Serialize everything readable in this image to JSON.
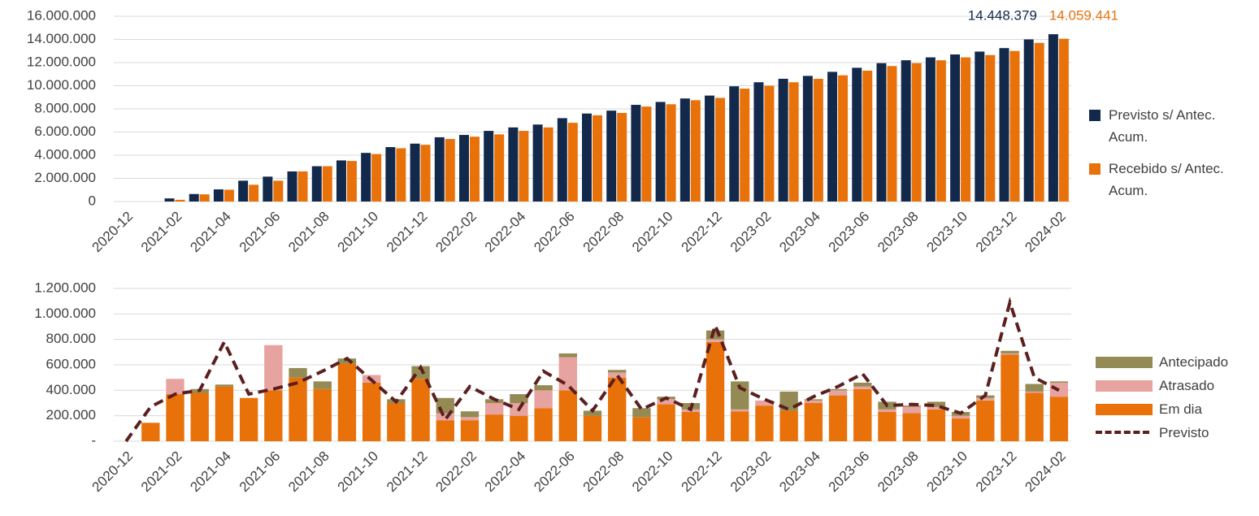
{
  "chart_data": [
    {
      "type": "bar",
      "categories": [
        "2020-12",
        null,
        "2021-02",
        null,
        "2021-04",
        null,
        "2021-06",
        null,
        "2021-08",
        null,
        "2021-10",
        null,
        "2021-12",
        null,
        "2022-02",
        null,
        "2022-04",
        null,
        "2022-06",
        null,
        "2022-08",
        null,
        "2022-10",
        null,
        "2022-12",
        null,
        "2023-02",
        null,
        "2023-04",
        null,
        "2023-06",
        null,
        "2023-08",
        null,
        "2023-10",
        null,
        "2023-12",
        null,
        "2024-02"
      ],
      "series": [
        {
          "name": "Previsto s/ Antec. Acum.",
          "color": "#13294b",
          "values": [
            0,
            0,
            270000,
            650000,
            1050000,
            1800000,
            2150000,
            2600000,
            3050000,
            3550000,
            4200000,
            4700000,
            5000000,
            5550000,
            5750000,
            6100000,
            6400000,
            6650000,
            7200000,
            7600000,
            7850000,
            8350000,
            8600000,
            8900000,
            9150000,
            9950000,
            10300000,
            10600000,
            10850000,
            11200000,
            11550000,
            11950000,
            12200000,
            12450000,
            12700000,
            12950000,
            13250000,
            14000000,
            14448379
          ],
          "value_labels": [
            null,
            null,
            null,
            null,
            null,
            null,
            null,
            null,
            null,
            null,
            null,
            null,
            null,
            null,
            null,
            null,
            null,
            null,
            null,
            null,
            null,
            null,
            null,
            null,
            null,
            null,
            null,
            null,
            null,
            null,
            null,
            null,
            null,
            null,
            null,
            null,
            null,
            null,
            "14.448.379"
          ]
        },
        {
          "name": "Recebido s/ Antec. Acum.",
          "color": "#e8710a",
          "values": [
            0,
            0,
            150000,
            620000,
            1020000,
            1450000,
            1800000,
            2600000,
            3050000,
            3500000,
            4100000,
            4600000,
            4900000,
            5400000,
            5600000,
            5800000,
            6100000,
            6400000,
            6800000,
            7450000,
            7650000,
            8200000,
            8400000,
            8750000,
            8950000,
            9750000,
            10000000,
            10300000,
            10600000,
            10900000,
            11300000,
            11700000,
            11950000,
            12200000,
            12450000,
            12650000,
            13000000,
            13700000,
            14059441
          ],
          "value_labels": [
            null,
            null,
            null,
            null,
            null,
            null,
            null,
            null,
            null,
            null,
            null,
            null,
            null,
            null,
            null,
            null,
            null,
            null,
            null,
            null,
            null,
            null,
            null,
            null,
            null,
            null,
            null,
            null,
            null,
            null,
            null,
            null,
            null,
            null,
            null,
            null,
            null,
            null,
            "14.059.441"
          ]
        }
      ],
      "ylim": [
        0,
        16000000
      ],
      "yticks": [
        0,
        {
          "value": 2000000,
          "label": "2.000.000"
        },
        {
          "value": 4000000,
          "label": "4.000.000"
        },
        {
          "value": 6000000,
          "label": "6.000.000"
        },
        {
          "value": 8000000,
          "label": "8.000.000"
        },
        {
          "value": 10000000,
          "label": "10.000.000"
        },
        {
          "value": 12000000,
          "label": "12.000.000"
        },
        {
          "value": 14000000,
          "label": "14.000.000"
        },
        {
          "value": 16000000,
          "label": "16.000.000"
        }
      ],
      "grid": true,
      "legend": "right"
    },
    {
      "type": "bar",
      "stacked": true,
      "categories": [
        "2020-12",
        null,
        "2021-02",
        null,
        "2021-04",
        null,
        "2021-06",
        null,
        "2021-08",
        null,
        "2021-10",
        null,
        "2021-12",
        null,
        "2022-02",
        null,
        "2022-04",
        null,
        "2022-06",
        null,
        "2022-08",
        null,
        "2022-10",
        null,
        "2022-12",
        null,
        "2023-02",
        null,
        "2023-04",
        null,
        "2023-06",
        null,
        "2023-08",
        null,
        "2023-10",
        null,
        "2023-12",
        null,
        "2024-02"
      ],
      "series": [
        {
          "name": "Em dia",
          "color": "#e8710a",
          "values": [
            0,
            145000,
            370000,
            380000,
            430000,
            340000,
            400000,
            500000,
            410000,
            610000,
            460000,
            300000,
            490000,
            165000,
            165000,
            210000,
            200000,
            260000,
            400000,
            200000,
            500000,
            190000,
            290000,
            230000,
            780000,
            235000,
            280000,
            240000,
            300000,
            360000,
            410000,
            230000,
            220000,
            250000,
            180000,
            320000,
            680000,
            380000,
            350000
          ]
        },
        {
          "name": "Atrasado",
          "color": "#e6a3a0",
          "values": [
            0,
            0,
            120000,
            0,
            0,
            0,
            355000,
            0,
            0,
            0,
            60000,
            0,
            0,
            55000,
            25000,
            90000,
            100000,
            140000,
            260000,
            0,
            40000,
            0,
            40000,
            20000,
            20000,
            15000,
            40000,
            0,
            20000,
            40000,
            20000,
            20000,
            50000,
            20000,
            20000,
            20000,
            10000,
            10000,
            110000
          ]
        },
        {
          "name": "Antecipado",
          "color": "#948a54",
          "values": [
            0,
            0,
            0,
            30000,
            15000,
            0,
            0,
            75000,
            60000,
            40000,
            0,
            30000,
            100000,
            120000,
            45000,
            30000,
            70000,
            40000,
            30000,
            40000,
            20000,
            70000,
            20000,
            50000,
            70000,
            220000,
            0,
            150000,
            10000,
            10000,
            30000,
            60000,
            10000,
            40000,
            30000,
            20000,
            20000,
            60000,
            10000
          ]
        },
        {
          "name": "Previsto",
          "type": "line",
          "dash": true,
          "color": "#5c1f1f",
          "values": [
            0,
            270000,
            370000,
            400000,
            780000,
            370000,
            410000,
            460000,
            550000,
            650000,
            480000,
            310000,
            580000,
            170000,
            430000,
            330000,
            250000,
            550000,
            440000,
            240000,
            520000,
            250000,
            340000,
            250000,
            910000,
            420000,
            330000,
            250000,
            350000,
            430000,
            530000,
            280000,
            290000,
            280000,
            220000,
            360000,
            1090000,
            500000,
            400000
          ]
        }
      ],
      "ylim": [
        0,
        1200000
      ],
      "yticks": [
        {
          "value": 0,
          "label": "-"
        },
        {
          "value": 200000,
          "label": "200.000"
        },
        {
          "value": 400000,
          "label": "400.000"
        },
        {
          "value": 600000,
          "label": "600.000"
        },
        {
          "value": 800000,
          "label": "800.000"
        },
        {
          "value": 1000000,
          "label": "1.000.000"
        },
        {
          "value": 1200000,
          "label": "1.200.000"
        }
      ],
      "grid": true,
      "legend": "right"
    }
  ]
}
